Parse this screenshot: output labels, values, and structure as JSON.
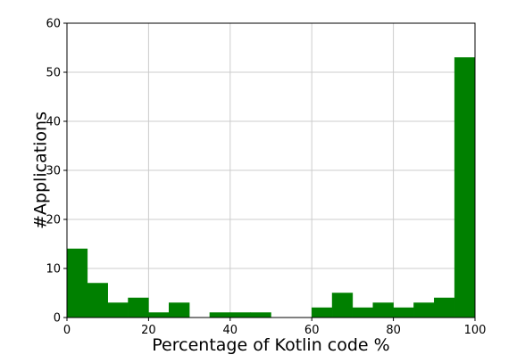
{
  "chart_data": {
    "type": "bar",
    "title": "",
    "xlabel": "Percentage of Kotlin code %",
    "ylabel": "#Applications",
    "xlim": [
      0,
      100
    ],
    "ylim": [
      0,
      60
    ],
    "xticks": [
      "0",
      "20",
      "40",
      "60",
      "80",
      "100"
    ],
    "yticks": [
      "0",
      "10",
      "20",
      "30",
      "40",
      "50",
      "60"
    ],
    "grid": true,
    "bar_color": "#008000",
    "bin_width": 5,
    "bins": [
      {
        "x0": 0,
        "x1": 5,
        "count": 14
      },
      {
        "x0": 5,
        "x1": 10,
        "count": 7
      },
      {
        "x0": 10,
        "x1": 15,
        "count": 3
      },
      {
        "x0": 15,
        "x1": 20,
        "count": 4
      },
      {
        "x0": 20,
        "x1": 25,
        "count": 1
      },
      {
        "x0": 25,
        "x1": 30,
        "count": 3
      },
      {
        "x0": 30,
        "x1": 35,
        "count": 0
      },
      {
        "x0": 35,
        "x1": 40,
        "count": 1
      },
      {
        "x0": 40,
        "x1": 45,
        "count": 1
      },
      {
        "x0": 45,
        "x1": 50,
        "count": 1
      },
      {
        "x0": 50,
        "x1": 55,
        "count": 0
      },
      {
        "x0": 55,
        "x1": 60,
        "count": 0
      },
      {
        "x0": 60,
        "x1": 65,
        "count": 2
      },
      {
        "x0": 65,
        "x1": 70,
        "count": 5
      },
      {
        "x0": 70,
        "x1": 75,
        "count": 2
      },
      {
        "x0": 75,
        "x1": 80,
        "count": 3
      },
      {
        "x0": 80,
        "x1": 85,
        "count": 2
      },
      {
        "x0": 85,
        "x1": 90,
        "count": 3
      },
      {
        "x0": 90,
        "x1": 95,
        "count": 4
      },
      {
        "x0": 95,
        "x1": 100,
        "count": 53
      }
    ]
  }
}
